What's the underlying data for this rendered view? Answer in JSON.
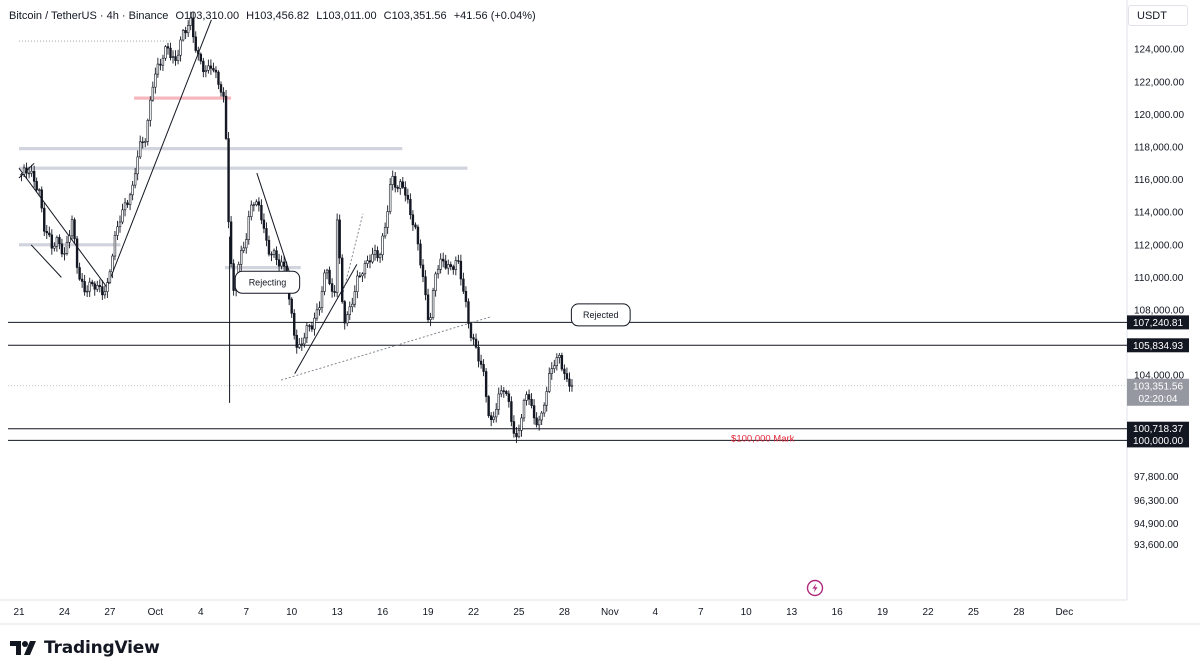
{
  "header": {
    "symbol": "Bitcoin / TetherUS · 4h · Binance",
    "open": "O103,310.00",
    "high": "H103,456.82",
    "low": "L103,011.00",
    "close": "C103,351.56",
    "change": "+41.56 (+0.04%)"
  },
  "currency_button": "USDT",
  "brand": {
    "name": "TradingView"
  },
  "colors": {
    "up": "#131722",
    "down": "#131722",
    "accent_red": "#e2263b",
    "label_bg": "#131722"
  },
  "chart_data": {
    "type": "candlestick",
    "symbol": "BTCUSDT",
    "interval": "4h",
    "y_axis": {
      "ticks": [
        "124,000.00",
        "122,000.00",
        "120,000.00",
        "118,000.00",
        "116,000.00",
        "114,000.00",
        "112,000.00",
        "110,000.00",
        "108,000.00",
        "104,000.00",
        "97,800.00",
        "96,300.00",
        "94,900.00",
        "93,600.00"
      ],
      "tick_values": [
        124000,
        122000,
        120000,
        118000,
        116000,
        114000,
        112000,
        110000,
        108000,
        104000,
        97800,
        96300,
        94900,
        93600
      ]
    },
    "x_axis": {
      "ticks": [
        "21",
        "24",
        "27",
        "Oct",
        "4",
        "7",
        "10",
        "13",
        "16",
        "19",
        "22",
        "25",
        "28",
        "Nov",
        "4",
        "7",
        "10",
        "13",
        "16",
        "19",
        "22",
        "25",
        "28",
        "Dec"
      ]
    },
    "price_labels": [
      {
        "text": "107,240.81",
        "value": 107240.81
      },
      {
        "text": "105,834.93",
        "value": 105834.93
      },
      {
        "text": "100,718.37",
        "value": 100718.37
      },
      {
        "text": "100,000.00",
        "value": 100000.0
      }
    ],
    "current_price": {
      "text": "103,351.56",
      "countdown": "02:20:04",
      "value": 103351.56
    },
    "annotations": [
      {
        "text": "Rejecting",
        "day": 16.4,
        "price": 109700
      },
      {
        "text": "Rejected",
        "day": 38.4,
        "price": 107700
      },
      {
        "text": "$100,000 Mark",
        "day": 47.0,
        "price": 100300
      }
    ],
    "horizontal_levels": [
      107240.81,
      105834.93,
      100718.37,
      100000.0
    ],
    "zones": [
      {
        "price": 117900,
        "start_day": 0,
        "end_day": 25.3
      },
      {
        "price": 116700,
        "start_day": 0,
        "end_day": 29.6
      },
      {
        "price": 112000,
        "start_day": 0,
        "end_day": 6.7
      },
      {
        "price": 110600,
        "start_day": 13.6,
        "end_day": 18.6
      },
      {
        "price": 121000,
        "start_day": 7.6,
        "end_day": 14,
        "color": "#f5b7bd"
      },
      {
        "price": 124500,
        "start_day": 0,
        "end_day": 10.1,
        "dotted": true
      }
    ],
    "trendlines": [
      {
        "from": [
          0,
          116700
        ],
        "to": [
          5.8,
          109400
        ]
      },
      {
        "from": [
          5.8,
          109400
        ],
        "to": [
          12.7,
          125800
        ]
      },
      {
        "from": [
          15.7,
          116400
        ],
        "to": [
          18.0,
          109900
        ]
      },
      {
        "from": [
          18.2,
          104100
        ],
        "to": [
          22.3,
          110800
        ]
      },
      {
        "from": [
          17.3,
          103700
        ],
        "to": [
          31.2,
          107600
        ],
        "dotted": true
      },
      {
        "from": [
          21.4,
          109100
        ],
        "to": [
          22.7,
          113900
        ],
        "dotted": true
      },
      {
        "from": [
          0.8,
          112000
        ],
        "to": [
          2.8,
          110000
        ]
      },
      {
        "from": [
          0,
          116100
        ],
        "to": [
          1.0,
          117000
        ]
      }
    ],
    "path_points": [
      [
        0,
        116300
      ],
      [
        0.7,
        116400
      ],
      [
        1.3,
        115600
      ],
      [
        1.7,
        112800
      ],
      [
        2.2,
        111800
      ],
      [
        2.6,
        112500
      ],
      [
        3.0,
        111300
      ],
      [
        3.5,
        113300
      ],
      [
        3.9,
        110400
      ],
      [
        4.3,
        109300
      ],
      [
        5.0,
        109400
      ],
      [
        5.8,
        109300
      ],
      [
        6.2,
        111500
      ],
      [
        6.6,
        113500
      ],
      [
        7.0,
        114600
      ],
      [
        7.5,
        115300
      ],
      [
        7.9,
        117800
      ],
      [
        8.4,
        118900
      ],
      [
        8.8,
        121800
      ],
      [
        9.3,
        123000
      ],
      [
        9.8,
        124400
      ],
      [
        10.3,
        123000
      ],
      [
        10.8,
        124800
      ],
      [
        11.3,
        126000
      ],
      [
        11.8,
        123400
      ],
      [
        12.3,
        122500
      ],
      [
        12.7,
        123300
      ],
      [
        13.3,
        121500
      ],
      [
        13.6,
        120300
      ],
      [
        13.9,
        111800
      ],
      [
        14.2,
        108900
      ],
      [
        14.5,
        110800
      ],
      [
        15.0,
        112300
      ],
      [
        15.4,
        115000
      ],
      [
        15.9,
        114300
      ],
      [
        16.4,
        111500
      ],
      [
        16.9,
        111500
      ],
      [
        17.5,
        110500
      ],
      [
        17.9,
        108000
      ],
      [
        18.4,
        105600
      ],
      [
        18.9,
        106600
      ],
      [
        19.4,
        107000
      ],
      [
        19.8,
        108400
      ],
      [
        20.3,
        110700
      ],
      [
        20.8,
        108000
      ],
      [
        21.0,
        113800
      ],
      [
        21.4,
        107500
      ],
      [
        21.9,
        107900
      ],
      [
        22.3,
        109700
      ],
      [
        22.7,
        110700
      ],
      [
        23.2,
        111200
      ],
      [
        23.8,
        111300
      ],
      [
        24.2,
        113500
      ],
      [
        24.6,
        116200
      ],
      [
        25.0,
        115200
      ],
      [
        25.3,
        115900
      ],
      [
        25.7,
        114600
      ],
      [
        26.2,
        112600
      ],
      [
        26.6,
        110300
      ],
      [
        27.1,
        107200
      ],
      [
        27.5,
        110300
      ],
      [
        28.0,
        110900
      ],
      [
        28.5,
        110700
      ],
      [
        28.9,
        111100
      ],
      [
        29.3,
        109300
      ],
      [
        29.7,
        107100
      ],
      [
        30.2,
        105600
      ],
      [
        30.7,
        103700
      ],
      [
        31.1,
        100900
      ],
      [
        31.6,
        102600
      ],
      [
        32.0,
        103100
      ],
      [
        32.4,
        101900
      ],
      [
        32.8,
        100000
      ],
      [
        33.2,
        101700
      ],
      [
        33.6,
        102900
      ],
      [
        34.0,
        101300
      ],
      [
        34.5,
        101500
      ],
      [
        34.9,
        103300
      ],
      [
        35.3,
        104800
      ],
      [
        35.7,
        105300
      ],
      [
        36.2,
        103300
      ],
      [
        36.5,
        103351
      ]
    ]
  }
}
